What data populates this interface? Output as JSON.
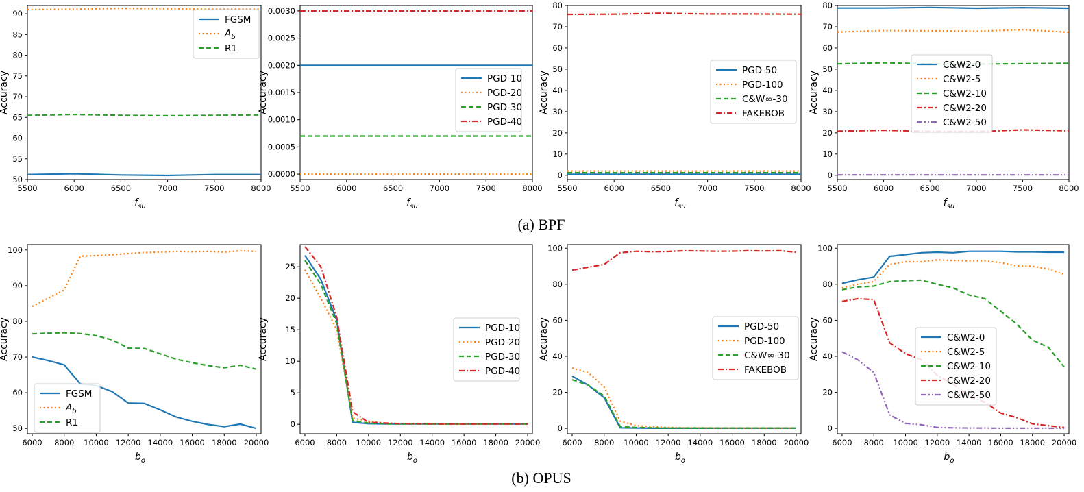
{
  "captions": {
    "top": "(a)  BPF",
    "bottom": "(b)  OPUS"
  },
  "chart_data": [
    {
      "type": "line",
      "x": [
        5500,
        6000,
        6500,
        7000,
        7500,
        8000
      ],
      "xlabel_base": "f",
      "xlabel_sub": "su",
      "ylabel": "Accuracy",
      "xlim": [
        5500,
        8000
      ],
      "ylim": [
        50,
        92
      ],
      "yticks": [
        50,
        55,
        60,
        65,
        70,
        75,
        80,
        85,
        90
      ],
      "xticks": [
        5500,
        6000,
        6500,
        7000,
        7500,
        8000
      ],
      "legend": "top-right",
      "series": [
        {
          "name": "FGSM",
          "values": [
            51.2,
            51.4,
            51.1,
            51.0,
            51.2,
            51.2
          ]
        },
        {
          "name_base": "A",
          "name_sub": "b",
          "values": [
            91.0,
            91.1,
            91.3,
            91.2,
            91.1,
            91.1
          ]
        },
        {
          "name": "R1",
          "values": [
            65.5,
            65.7,
            65.5,
            65.4,
            65.5,
            65.6
          ]
        }
      ]
    },
    {
      "type": "line",
      "x": [
        5500,
        6000,
        6500,
        7000,
        7500,
        8000
      ],
      "xlabel_base": "f",
      "xlabel_sub": "su",
      "ylabel": "Accuracy",
      "xlim": [
        5500,
        8000
      ],
      "ylim": [
        -0.0001,
        0.0031
      ],
      "yticks": [
        "0.0000",
        "0.0005",
        "0.0010",
        "0.0015",
        "0.0020",
        "0.0025",
        "0.0030"
      ],
      "xticks": [
        5500,
        6000,
        6500,
        7000,
        7500,
        8000
      ],
      "legend": "center-right",
      "series": [
        {
          "name": "PGD-10",
          "values": [
            0.002,
            0.002,
            0.002,
            0.002,
            0.002,
            0.002
          ]
        },
        {
          "name": "PGD-20",
          "values": [
            0,
            0,
            0,
            0,
            0,
            0
          ]
        },
        {
          "name": "PGD-30",
          "values": [
            0.0007,
            0.0007,
            0.0007,
            0.0007,
            0.0007,
            0.0007
          ]
        },
        {
          "name": "PGD-40",
          "values": [
            0.003,
            0.003,
            0.003,
            0.003,
            0.003,
            0.003
          ]
        }
      ]
    },
    {
      "type": "line",
      "x": [
        5500,
        6000,
        6500,
        7000,
        7500,
        8000
      ],
      "xlabel_base": "f",
      "xlabel_sub": "su",
      "ylabel": "Accuracy",
      "xlim": [
        5500,
        8000
      ],
      "ylim": [
        -2,
        80
      ],
      "yticks": [
        0,
        10,
        20,
        30,
        40,
        50,
        60,
        70,
        80
      ],
      "xticks": [
        5500,
        6000,
        6500,
        7000,
        7500,
        8000
      ],
      "legend": "center-right",
      "series": [
        {
          "name": "PGD-50",
          "values": [
            0.5,
            0.5,
            0.5,
            0.5,
            0.5,
            0.5
          ]
        },
        {
          "name": "PGD-100",
          "values": [
            2.0,
            2.0,
            2.0,
            2.0,
            2.0,
            2.0
          ]
        },
        {
          "name": "C&W∞-30",
          "values": [
            1.2,
            1.2,
            1.2,
            1.2,
            1.2,
            1.2
          ]
        },
        {
          "name": "FAKEBOB",
          "values": [
            75.8,
            75.9,
            76.4,
            76.0,
            76.0,
            75.9
          ]
        }
      ]
    },
    {
      "type": "line",
      "x": [
        5500,
        6000,
        6500,
        7000,
        7500,
        8000
      ],
      "xlabel_base": "f",
      "xlabel_sub": "su",
      "ylabel": "Accuracy",
      "xlim": [
        5500,
        8000
      ],
      "ylim": [
        -2,
        80
      ],
      "yticks": [
        0,
        10,
        20,
        30,
        40,
        50,
        60,
        70,
        80
      ],
      "xticks": [
        5500,
        6000,
        6500,
        7000,
        7500,
        8000
      ],
      "legend": "center",
      "series": [
        {
          "name": "C&W2-0",
          "values": [
            78.8,
            78.8,
            79.1,
            78.7,
            79.0,
            78.7
          ]
        },
        {
          "name": "C&W2-5",
          "values": [
            67.5,
            68.2,
            68.1,
            67.9,
            68.6,
            67.4
          ]
        },
        {
          "name": "C&W2-10",
          "values": [
            52.5,
            53.0,
            52.5,
            52.4,
            52.6,
            52.8
          ]
        },
        {
          "name": "C&W2-20",
          "values": [
            20.8,
            21.2,
            20.7,
            20.6,
            21.4,
            21.0
          ]
        },
        {
          "name": "C&W2-50",
          "values": [
            0.2,
            0.2,
            0.2,
            0.2,
            0.2,
            0.2
          ]
        }
      ]
    },
    {
      "type": "line",
      "x": [
        6000,
        7000,
        8000,
        9000,
        10000,
        11000,
        12000,
        13000,
        14000,
        15000,
        16000,
        17000,
        18000,
        19000,
        20000
      ],
      "xlabel_base": "b",
      "xlabel_sub": "o",
      "ylabel": "Accuracy",
      "xlim": [
        5700,
        20300
      ],
      "ylim": [
        48.5,
        101.5
      ],
      "yticks": [
        50,
        60,
        70,
        80,
        90,
        100
      ],
      "xticks": [
        6000,
        8000,
        10000,
        12000,
        14000,
        16000,
        18000,
        20000
      ],
      "legend": "bottom-left",
      "series": [
        {
          "name": "FGSM",
          "values": [
            70.0,
            69.0,
            67.8,
            62.5,
            62.0,
            60.3,
            57.1,
            57.0,
            55.2,
            53.2,
            52.0,
            51.1,
            50.5,
            51.2,
            50.0
          ]
        },
        {
          "name_base": "A",
          "name_sub": "b",
          "values": [
            84.2,
            86.5,
            88.8,
            98.3,
            98.4,
            98.7,
            99.0,
            99.3,
            99.4,
            99.6,
            99.5,
            99.6,
            99.4,
            99.8,
            99.6
          ]
        },
        {
          "name": "R1",
          "values": [
            76.5,
            76.7,
            76.8,
            76.6,
            76.0,
            74.8,
            72.5,
            72.4,
            70.9,
            69.4,
            68.4,
            67.6,
            67.0,
            67.7,
            66.6
          ]
        }
      ]
    },
    {
      "type": "line",
      "x": [
        6000,
        7000,
        8000,
        9000,
        10000,
        11000,
        12000,
        13000,
        14000,
        15000,
        16000,
        17000,
        18000,
        19000,
        20000
      ],
      "xlabel_base": "b",
      "xlabel_sub": "o",
      "ylabel": "Accuracy",
      "xlim": [
        5700,
        20300
      ],
      "ylim": [
        -1.5,
        28.5
      ],
      "yticks": [
        0,
        5,
        10,
        15,
        20,
        25
      ],
      "xticks": [
        6000,
        8000,
        10000,
        12000,
        14000,
        16000,
        18000,
        20000
      ],
      "legend": "top-right",
      "series": [
        {
          "name": "PGD-10",
          "values": [
            26.8,
            23.0,
            16.5,
            0.3,
            0.1,
            0.05,
            0.05,
            0.05,
            0.05,
            0.05,
            0.05,
            0.05,
            0.05,
            0.05,
            0.05
          ]
        },
        {
          "name": "PGD-20",
          "values": [
            24.5,
            20.0,
            15.0,
            1.0,
            0.5,
            0.2,
            0.1,
            0.1,
            0.1,
            0.05,
            0.05,
            0.05,
            0.05,
            0.05,
            0.05
          ]
        },
        {
          "name": "PGD-30",
          "values": [
            26.0,
            22.2,
            16.0,
            0.6,
            0.2,
            0.1,
            0.05,
            0.05,
            0.05,
            0.05,
            0.05,
            0.05,
            0.05,
            0.05,
            0.05
          ]
        },
        {
          "name": "PGD-40",
          "values": [
            28.2,
            25.0,
            17.0,
            2.0,
            0.3,
            0.2,
            0.1,
            0.1,
            0.05,
            0.05,
            0.05,
            0.05,
            0.05,
            0.05,
            0.05
          ]
        }
      ]
    },
    {
      "type": "line",
      "x": [
        6000,
        7000,
        8000,
        9000,
        10000,
        11000,
        12000,
        13000,
        14000,
        15000,
        16000,
        17000,
        18000,
        19000,
        20000
      ],
      "xlabel_base": "b",
      "xlabel_sub": "o",
      "ylabel": "Accuracy",
      "xlim": [
        5700,
        20300
      ],
      "ylim": [
        -3,
        102
      ],
      "yticks": [
        0,
        20,
        40,
        60,
        80,
        100
      ],
      "xticks": [
        6000,
        8000,
        10000,
        12000,
        14000,
        16000,
        18000,
        20000
      ],
      "legend": "center-right",
      "series": [
        {
          "name": "PGD-50",
          "values": [
            29.0,
            24.0,
            17.0,
            0.3,
            0.2,
            0.1,
            0.1,
            0.1,
            0.1,
            0.1,
            0.1,
            0.1,
            0.1,
            0.1,
            0.1
          ]
        },
        {
          "name": "PGD-100",
          "values": [
            33.5,
            31.0,
            23.0,
            4.0,
            1.5,
            1.0,
            0.5,
            0.3,
            0.3,
            0.2,
            0.2,
            0.2,
            0.2,
            0.2,
            0.2
          ]
        },
        {
          "name": "C&W∞-30",
          "values": [
            27.0,
            24.0,
            18.0,
            1.0,
            0.5,
            0.3,
            0.2,
            0.2,
            0.2,
            0.2,
            0.2,
            0.2,
            0.2,
            0.2,
            0.2
          ]
        },
        {
          "name": "FAKEBOB",
          "values": [
            87.8,
            89.5,
            91.0,
            97.5,
            98.3,
            98.1,
            98.2,
            98.6,
            98.5,
            98.3,
            98.4,
            98.6,
            98.5,
            98.6,
            97.8
          ]
        }
      ]
    },
    {
      "type": "line",
      "x": [
        6000,
        7000,
        8000,
        9000,
        10000,
        11000,
        12000,
        13000,
        14000,
        15000,
        16000,
        17000,
        18000,
        19000,
        20000
      ],
      "xlabel_base": "b",
      "xlabel_sub": "o",
      "ylabel": "Accuracy",
      "xlim": [
        5700,
        20300
      ],
      "ylim": [
        -3,
        102
      ],
      "yticks": [
        0,
        20,
        40,
        60,
        80,
        100
      ],
      "xticks": [
        6000,
        8000,
        10000,
        12000,
        14000,
        16000,
        18000,
        20000
      ],
      "legend": "center",
      "series": [
        {
          "name": "C&W2-0",
          "values": [
            80.5,
            82.5,
            84.0,
            95.5,
            96.5,
            97.5,
            97.8,
            97.5,
            98.3,
            98.3,
            98.3,
            98.0,
            98.0,
            97.8,
            97.8
          ]
        },
        {
          "name": "C&W2-5",
          "values": [
            78.0,
            80.0,
            81.5,
            91.0,
            92.5,
            92.5,
            93.5,
            93.2,
            93.0,
            93.0,
            92.0,
            90.2,
            90.0,
            88.5,
            85.5
          ]
        },
        {
          "name": "C&W2-10",
          "values": [
            77.0,
            78.5,
            79.0,
            81.5,
            82.0,
            82.3,
            80.0,
            78.0,
            74.0,
            72.0,
            65.0,
            58.0,
            49.0,
            45.0,
            34.0
          ]
        },
        {
          "name": "C&W2-20",
          "values": [
            70.5,
            72.0,
            71.5,
            47.5,
            41.5,
            38.0,
            29.5,
            24.5,
            18.0,
            14.5,
            8.5,
            6.0,
            2.5,
            1.5,
            0.5
          ]
        },
        {
          "name": "C&W2-50",
          "values": [
            42.5,
            38.0,
            31.0,
            7.5,
            2.8,
            2.0,
            0.5,
            0.3,
            0.2,
            0.2,
            0.1,
            0.1,
            0.1,
            0.1,
            0.1
          ]
        }
      ]
    }
  ]
}
